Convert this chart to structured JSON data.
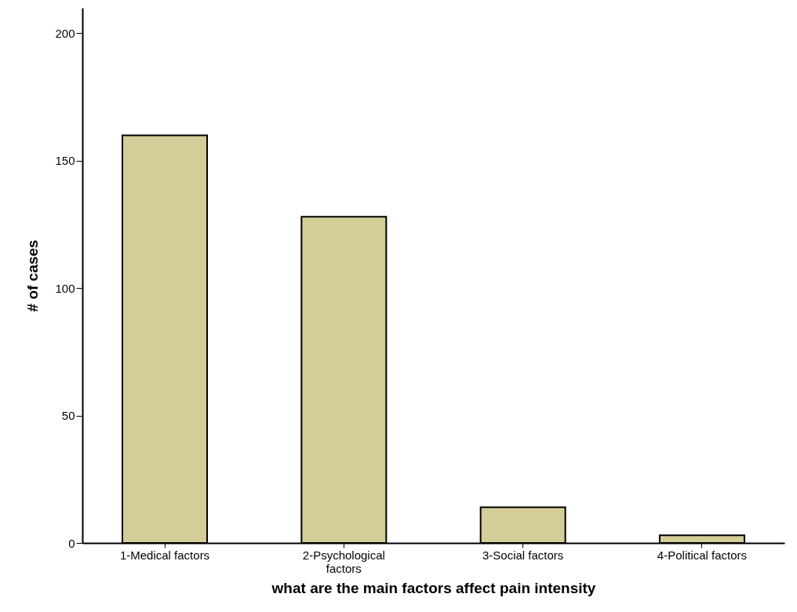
{
  "chart_data": {
    "type": "bar",
    "xlabel": "what are the main factors affect pain intensity",
    "ylabel": "# of cases",
    "categories": [
      "1-Medical factors",
      "2-Psychological factors",
      "3-Social factors",
      "4-Political factors"
    ],
    "values": [
      160,
      128,
      14,
      3
    ],
    "color": "#d4cd98",
    "ylim": [
      0,
      210
    ],
    "yticks": [
      0,
      50,
      100,
      150,
      200
    ],
    "grid": false
  }
}
